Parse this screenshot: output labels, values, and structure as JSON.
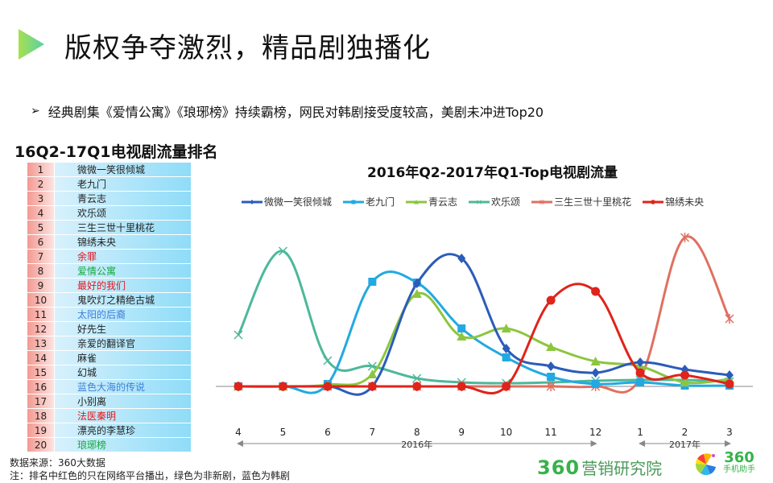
{
  "header": {
    "title": "版权争夺激烈，精品剧独播化",
    "bullet": "经典剧集《爱情公寓》《琅琊榜》持续霸榜，网民对韩剧接受度较高，美剧未冲进Top20"
  },
  "ranking": {
    "title": "16Q2-17Q1电视剧流量排名",
    "rows": [
      {
        "rank": "1",
        "name": "微微一笑很倾城",
        "color": "black"
      },
      {
        "rank": "2",
        "name": "老九门",
        "color": "black"
      },
      {
        "rank": "3",
        "name": "青云志",
        "color": "black"
      },
      {
        "rank": "4",
        "name": "欢乐颂",
        "color": "black"
      },
      {
        "rank": "5",
        "name": "三生三世十里桃花",
        "color": "black"
      },
      {
        "rank": "6",
        "name": "锦绣未央",
        "color": "black"
      },
      {
        "rank": "7",
        "name": "余罪",
        "color": "red"
      },
      {
        "rank": "8",
        "name": "爱情公寓",
        "color": "green"
      },
      {
        "rank": "9",
        "name": "最好的我们",
        "color": "red"
      },
      {
        "rank": "10",
        "name": "鬼吹灯之精绝古城",
        "color": "black"
      },
      {
        "rank": "11",
        "name": "太阳的后裔",
        "color": "blue"
      },
      {
        "rank": "12",
        "name": "好先生",
        "color": "black"
      },
      {
        "rank": "13",
        "name": "亲爱的翻译官",
        "color": "black"
      },
      {
        "rank": "14",
        "name": "麻雀",
        "color": "black"
      },
      {
        "rank": "15",
        "name": "幻城",
        "color": "black"
      },
      {
        "rank": "16",
        "name": "蓝色大海的传说",
        "color": "blue"
      },
      {
        "rank": "17",
        "name": "小别离",
        "color": "black"
      },
      {
        "rank": "18",
        "name": "法医秦明",
        "color": "red"
      },
      {
        "rank": "19",
        "name": "漂亮的李慧珍",
        "color": "black"
      },
      {
        "rank": "20",
        "name": "琅琊榜",
        "color": "green"
      }
    ]
  },
  "footer": {
    "source": "数据来源：360大数据",
    "note": "注：排名中红色的只在网络平台播出，绿色为非新剧，蓝色为韩剧",
    "brand_num": "360",
    "brand_text": "营销研究院",
    "logo_num": "360",
    "logo_sub": "手机助手"
  },
  "chart_data": {
    "type": "line",
    "title": "2016年Q2-2017年Q1-Top电视剧流量",
    "xlabel": "",
    "ylabel": "",
    "categories": [
      "4",
      "5",
      "6",
      "7",
      "8",
      "9",
      "10",
      "11",
      "12",
      "1",
      "2",
      "3"
    ],
    "year_groups": [
      {
        "label": "2016年",
        "from": "4",
        "to": "12"
      },
      {
        "label": "2017年",
        "from": "1",
        "to": "3"
      }
    ],
    "grid": false,
    "legend_position": "top",
    "y_axis_visible": false,
    "ylim": [
      0,
      190
    ],
    "series": [
      {
        "name": "微微一笑很倾城",
        "color": "#2b5cb8",
        "marker": "diamond",
        "values": [
          0,
          0,
          0,
          0,
          128,
          159,
          47,
          25,
          17,
          30,
          21,
          14
        ]
      },
      {
        "name": "老九门",
        "color": "#22a9e1",
        "marker": "square",
        "values": [
          0,
          0,
          3,
          130,
          129,
          72,
          36,
          12,
          3,
          5,
          1,
          1
        ]
      },
      {
        "name": "青云志",
        "color": "#8cc63f",
        "marker": "triangle",
        "values": [
          0,
          0,
          2,
          15,
          115,
          62,
          72,
          49,
          31,
          25,
          5,
          9
        ]
      },
      {
        "name": "欢乐颂",
        "color": "#4cb89a",
        "marker": "x",
        "values": [
          64,
          168,
          32,
          25,
          10,
          5,
          4,
          5,
          7,
          8,
          8,
          6
        ]
      },
      {
        "name": "三生三世十里桃花",
        "color": "#e07060",
        "marker": "star",
        "values": [
          0,
          0,
          0,
          0,
          0,
          0,
          0,
          0,
          0,
          10,
          185,
          84
        ]
      },
      {
        "name": "锦绣未央",
        "color": "#e0231b",
        "marker": "circle",
        "values": [
          0,
          0,
          0,
          0,
          0,
          0,
          0,
          107,
          118,
          17,
          14,
          3
        ]
      }
    ]
  }
}
